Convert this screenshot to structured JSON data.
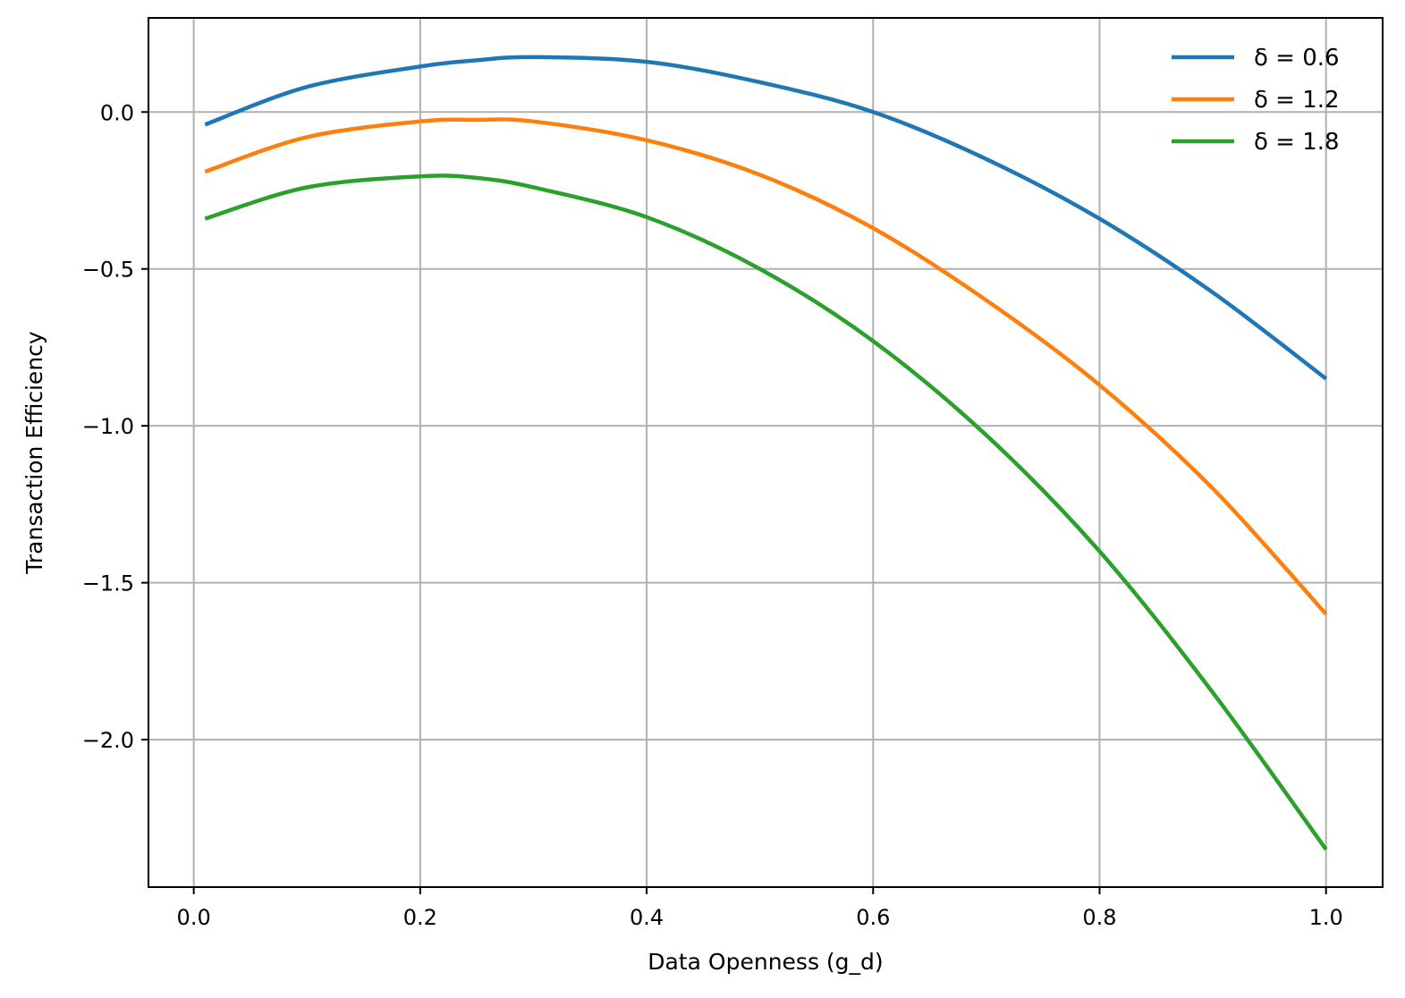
{
  "chart_data": {
    "type": "line",
    "title": "",
    "xlabel": "Data Openness (g_d)",
    "ylabel": "Transaction Efficiency",
    "xlim": [
      -0.04,
      1.05
    ],
    "ylim": [
      -2.47,
      0.3
    ],
    "xticks": [
      0.0,
      0.2,
      0.4,
      0.6,
      0.8,
      1.0
    ],
    "xtick_labels": [
      "0.0",
      "0.2",
      "0.4",
      "0.6",
      "0.8",
      "1.0"
    ],
    "yticks": [
      0.0,
      -0.5,
      -1.0,
      -1.5,
      -2.0
    ],
    "ytick_labels": [
      "0.0",
      "−0.5",
      "−1.0",
      "−1.5",
      "−2.0"
    ],
    "grid": true,
    "legend_position": "top-right",
    "x": [
      0.01,
      0.1,
      0.2,
      0.25,
      0.3,
      0.4,
      0.5,
      0.6,
      0.7,
      0.8,
      0.9,
      1.0
    ],
    "series": [
      {
        "name": "δ = 0.6",
        "color": "#1f77b4",
        "values": [
          -0.04,
          0.08,
          0.145,
          0.165,
          0.175,
          0.16,
          0.095,
          0.0,
          -0.15,
          -0.34,
          -0.575,
          -0.85
        ]
      },
      {
        "name": "δ = 1.2",
        "color": "#ff7f0e",
        "values": [
          -0.19,
          -0.08,
          -0.03,
          -0.025,
          -0.03,
          -0.09,
          -0.2,
          -0.37,
          -0.6,
          -0.87,
          -1.2,
          -1.6
        ]
      },
      {
        "name": "δ = 1.8",
        "color": "#2ca02c",
        "values": [
          -0.34,
          -0.24,
          -0.205,
          -0.21,
          -0.24,
          -0.335,
          -0.5,
          -0.73,
          -1.03,
          -1.4,
          -1.85,
          -2.35
        ]
      }
    ]
  }
}
